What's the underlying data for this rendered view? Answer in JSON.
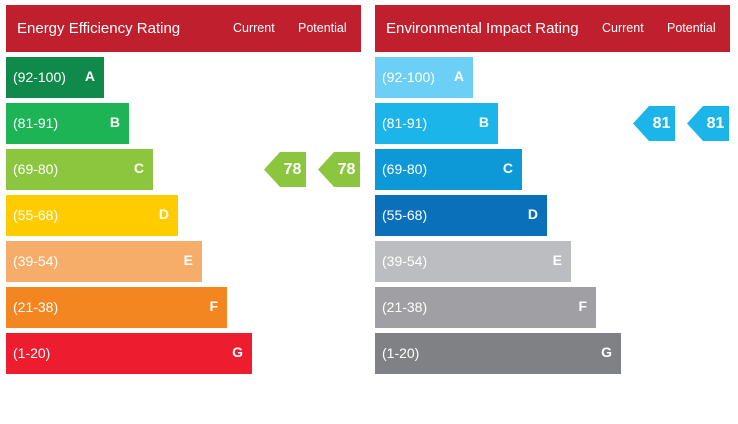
{
  "chart_data": [
    {
      "type": "bar",
      "title": "Energy Efficiency Rating",
      "columns": {
        "current": "Current",
        "potential": "Potential"
      },
      "bands": [
        {
          "range": "(92-100)",
          "letter": "A",
          "color": "#0f8a4a"
        },
        {
          "range": "(81-91)",
          "letter": "B",
          "color": "#1db456"
        },
        {
          "range": "(69-80)",
          "letter": "C",
          "color": "#8cc63f"
        },
        {
          "range": "(55-68)",
          "letter": "D",
          "color": "#ffcc00"
        },
        {
          "range": "(39-54)",
          "letter": "E",
          "color": "#f7ad6a"
        },
        {
          "range": "(21-38)",
          "letter": "F",
          "color": "#f48622"
        },
        {
          "range": "(1-20)",
          "letter": "G",
          "color": "#ed1c2e"
        }
      ],
      "current": {
        "value": 78,
        "band": "C"
      },
      "potential": {
        "value": 78,
        "band": "C"
      }
    },
    {
      "type": "bar",
      "title": "Environmental Impact Rating",
      "columns": {
        "current": "Current",
        "potential": "Potential"
      },
      "bands": [
        {
          "range": "(92-100)",
          "letter": "A",
          "color": "#6ccff6"
        },
        {
          "range": "(81-91)",
          "letter": "B",
          "color": "#1cb5ea"
        },
        {
          "range": "(69-80)",
          "letter": "C",
          "color": "#0d98d8"
        },
        {
          "range": "(55-68)",
          "letter": "D",
          "color": "#0a70b9"
        },
        {
          "range": "(39-54)",
          "letter": "E",
          "color": "#bbbdc0"
        },
        {
          "range": "(21-38)",
          "letter": "F",
          "color": "#a0a0a4"
        },
        {
          "range": "(1-20)",
          "letter": "G",
          "color": "#808184"
        }
      ],
      "current": {
        "value": 81,
        "band": "B"
      },
      "potential": {
        "value": 81,
        "band": "B"
      }
    }
  ]
}
